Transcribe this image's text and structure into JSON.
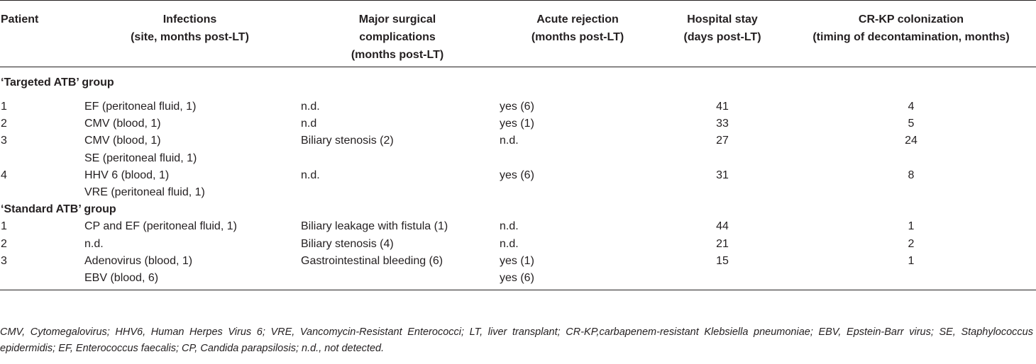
{
  "headers": [
    {
      "line1": "Patient",
      "line2": ""
    },
    {
      "line1": "Infections",
      "line2": "(site, months post-LT)"
    },
    {
      "line1": "Major surgical",
      "line2": "complications",
      "line3": "(months post-LT)"
    },
    {
      "line1": "Acute rejection",
      "line2": "(months post-LT)"
    },
    {
      "line1": "Hospital stay",
      "line2": "(days post-LT)"
    },
    {
      "line1": "CR-KP colonization",
      "line2": "(timing of decontamination, months)"
    }
  ],
  "groups": [
    {
      "label": "‘Targeted ATB’ group",
      "rows": [
        [
          "1",
          "EF (peritoneal fluid, 1)",
          "n.d.",
          "yes (6)",
          "41",
          "4"
        ],
        [
          "2",
          "CMV (blood, 1)",
          "n.d",
          "yes (1)",
          "33",
          "5"
        ],
        [
          "3",
          "CMV (blood, 1)",
          "Biliary stenosis (2)",
          "n.d.",
          "27",
          "24"
        ],
        [
          "",
          "SE (peritoneal fluid, 1)",
          "",
          "",
          "",
          ""
        ],
        [
          "4",
          "HHV 6 (blood, 1)",
          "n.d.",
          "yes (6)",
          "31",
          "8"
        ],
        [
          "",
          "VRE (peritoneal fluid, 1)",
          "",
          "",
          "",
          ""
        ]
      ]
    },
    {
      "label": "‘Standard ATB’ group",
      "rows": [
        [
          "1",
          "CP and EF (peritoneal fluid, 1)",
          "Biliary leakage with fistula (1)",
          "n.d.",
          "44",
          "1"
        ],
        [
          "2",
          "n.d.",
          "Biliary stenosis (4)",
          "n.d.",
          "21",
          "2"
        ],
        [
          "3",
          "Adenovirus (blood, 1)",
          "Gastrointestinal bleeding (6)",
          "yes (1)",
          "15",
          "1"
        ],
        [
          "",
          "EBV (blood, 6)",
          "",
          "yes (6)",
          "",
          ""
        ]
      ]
    }
  ],
  "footnote": "CMV, Cytomegalovirus; HHV6, Human Herpes Virus 6; VRE, Vancomycin-Resistant Enterococci; LT, liver transplant; CR-KP,carbapenem-resistant Klebsiella pneumoniae; EBV, Epstein-Barr virus; SE, Staphylococcus epidermidis; EF, Enterococcus faecalis; CP, Candida parapsilosis; n.d., not detected."
}
